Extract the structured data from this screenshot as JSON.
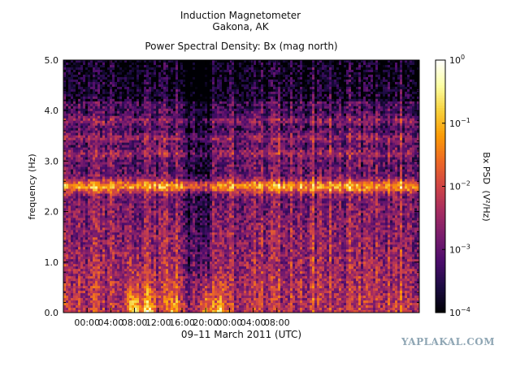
{
  "chart_data": {
    "type": "heatmap",
    "title_line1": "Induction Magnetometer",
    "title_line2": "Gakona, AK",
    "subtitle": "Power Spectral Density: Bx (mag north)",
    "xlabel": "09–11 March 2011 (UTC)",
    "ylabel": "frequency (Hz)",
    "x_tick_labels": [
      "00:00",
      "04:00",
      "08:00",
      "12:00",
      "16:00",
      "20:00",
      "00:00",
      "04:00",
      "08:00"
    ],
    "x_range_hours": [
      -4,
      56
    ],
    "x_tick_hours": [
      0,
      4,
      8,
      12,
      16,
      20,
      24,
      28,
      32
    ],
    "x_tick_hours_note": "ticks every 4 h",
    "y_ticks": [
      0.0,
      1.0,
      2.0,
      3.0,
      4.0,
      5.0
    ],
    "y_tick_labels": [
      "0.0",
      "1.0",
      "2.0",
      "3.0",
      "4.0",
      "5.0"
    ],
    "ylim": [
      0,
      5
    ],
    "colorbar": {
      "label_text": "Bx PSD",
      "label_units": "(V²/Hz)",
      "scale": "log",
      "range": [
        0.0001,
        1
      ],
      "tick_values": [
        1,
        0.1,
        0.01,
        0.001,
        0.0001
      ],
      "tick_bases": [
        "10",
        "10",
        "10",
        "10",
        "10"
      ],
      "tick_exponents": [
        "0",
        "−1",
        "−2",
        "−3",
        "−4"
      ],
      "colormap": [
        "#000004",
        "#1b0c41",
        "#4a0c6b",
        "#781c6d",
        "#a52c60",
        "#cf4446",
        "#ed6925",
        "#fb9b06",
        "#f7d13d",
        "#fcffa4",
        "#ffffff"
      ]
    },
    "features": {
      "resonance_band_hz": [
        2.35,
        2.65
      ],
      "resonance_band_center_hz": 2.5,
      "upper_bands_hz": [
        3.8,
        3.45,
        3.15
      ],
      "low_freq_bursts_hours": [
        8,
        10.5,
        14.5,
        20,
        22.5
      ],
      "quiet_interval_hours": [
        16,
        21
      ]
    }
  },
  "watermark": "YAPLAKAL.COM"
}
